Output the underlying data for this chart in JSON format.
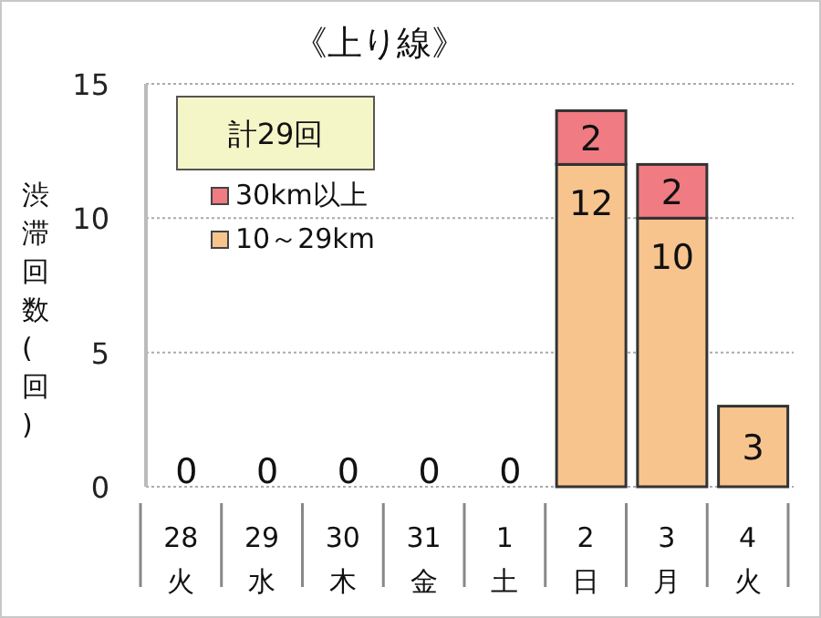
{
  "chart_data": {
    "type": "bar",
    "title": "《上り線》",
    "ylabel": "渋滞回数(回)",
    "annotations": [
      "計29回"
    ],
    "categories": [
      "28\n火",
      "29\n水",
      "30\n木",
      "31\n金",
      "1\n土",
      "2\n日",
      "3\n月",
      "4\n火"
    ],
    "stacked": true,
    "series": [
      {
        "name": "10～29km",
        "color": "#f8c48e",
        "values": [
          0,
          0,
          0,
          0,
          0,
          12,
          10,
          3
        ],
        "value_labels": [
          "0",
          "0",
          "0",
          "0",
          "0",
          "12",
          "10",
          "3"
        ]
      },
      {
        "name": "30km以上",
        "color": "#f07b82",
        "values": [
          0,
          0,
          0,
          0,
          0,
          2,
          2,
          0
        ],
        "value_labels": [
          null,
          null,
          null,
          null,
          null,
          "2",
          "2",
          null
        ]
      }
    ],
    "ylim": [
      0,
      15
    ],
    "yticks": [
      0,
      5,
      10,
      15
    ],
    "grid": "y",
    "legend": "top left"
  }
}
